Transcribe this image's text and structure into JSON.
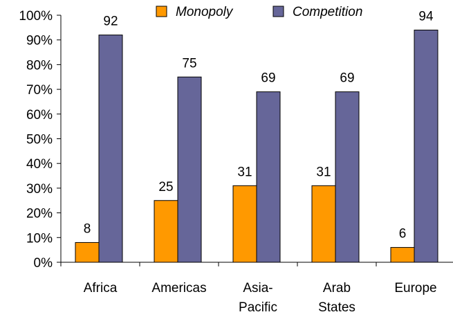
{
  "chart_data": {
    "type": "bar",
    "categories": [
      [
        "Africa"
      ],
      [
        "Americas"
      ],
      [
        "Asia-",
        "Pacific"
      ],
      [
        "Arab",
        "States"
      ],
      [
        "Europe"
      ]
    ],
    "series": [
      {
        "name": "Monopoly",
        "values": [
          8,
          25,
          31,
          31,
          6
        ],
        "color": "#FF9900"
      },
      {
        "name": "Competition",
        "values": [
          92,
          75,
          69,
          69,
          94
        ],
        "color": "#666699"
      }
    ],
    "title": "",
    "xlabel": "",
    "ylabel": "",
    "ylim": [
      0,
      100
    ],
    "yticks": [
      0,
      10,
      20,
      30,
      40,
      50,
      60,
      70,
      80,
      90,
      100
    ],
    "ytick_format": "percent",
    "grid": false,
    "legend_position": "top"
  }
}
